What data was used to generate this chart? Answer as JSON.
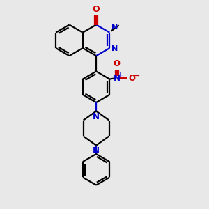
{
  "bg_color": "#e8e8e8",
  "bond_color": "#000000",
  "N_color": "#0000cc",
  "O_color": "#cc0000",
  "line_width": 1.6,
  "fig_size": [
    3.0,
    3.0
  ],
  "dpi": 100,
  "xlim": [
    0,
    10
  ],
  "ylim": [
    0,
    10
  ]
}
